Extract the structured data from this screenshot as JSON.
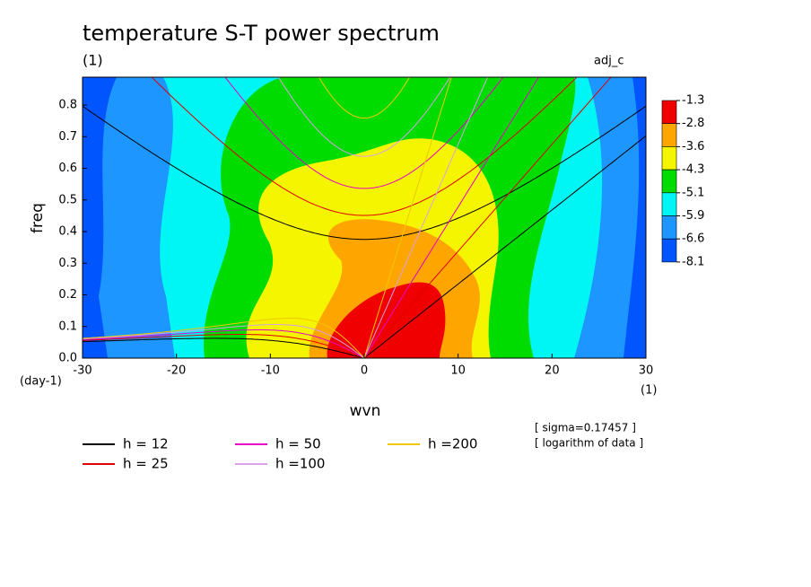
{
  "chart_data": {
    "type": "contour",
    "title": "temperature S-T power spectrum",
    "subtitle": "(1)",
    "experiment": "adj_c",
    "y_label": "freq",
    "x_label": "wvn",
    "y_unit": "(day-1)",
    "x_unit": "(1)",
    "xlim": [
      -30,
      30
    ],
    "ylim": [
      0,
      0.888
    ],
    "xticks": [
      -30,
      -20,
      -10,
      0,
      10,
      20,
      30
    ],
    "yticks": [
      {
        "value": 0,
        "label": "0.0"
      },
      0.1,
      0.2,
      0.3,
      0.4,
      0.5,
      0.6,
      0.7,
      0.8
    ],
    "colorbar": {
      "levels": [
        -1.3,
        -2.8,
        -3.6,
        -4.3,
        -5.1,
        -5.9,
        -6.6,
        -8.1
      ],
      "colors": [
        "#f00000",
        "#ffa500",
        "#f5f500",
        "#00dc00",
        "#00f5f5",
        "#1e96ff",
        "#0055ff"
      ]
    },
    "series": [
      {
        "name": "h = 12",
        "color": "#000000",
        "h": 12
      },
      {
        "name": "h = 25",
        "color": "#e00000",
        "h": 25
      },
      {
        "name": "h = 50",
        "color": "#e600c8",
        "h": 50
      },
      {
        "name": "h =100",
        "color": "#d8a0e6",
        "h": 100
      },
      {
        "name": "h =200",
        "color": "#f0c800",
        "h": 200
      }
    ],
    "notes": [
      "[ sigma=0.17457 ]",
      "[ logarithm of data ]"
    ]
  }
}
